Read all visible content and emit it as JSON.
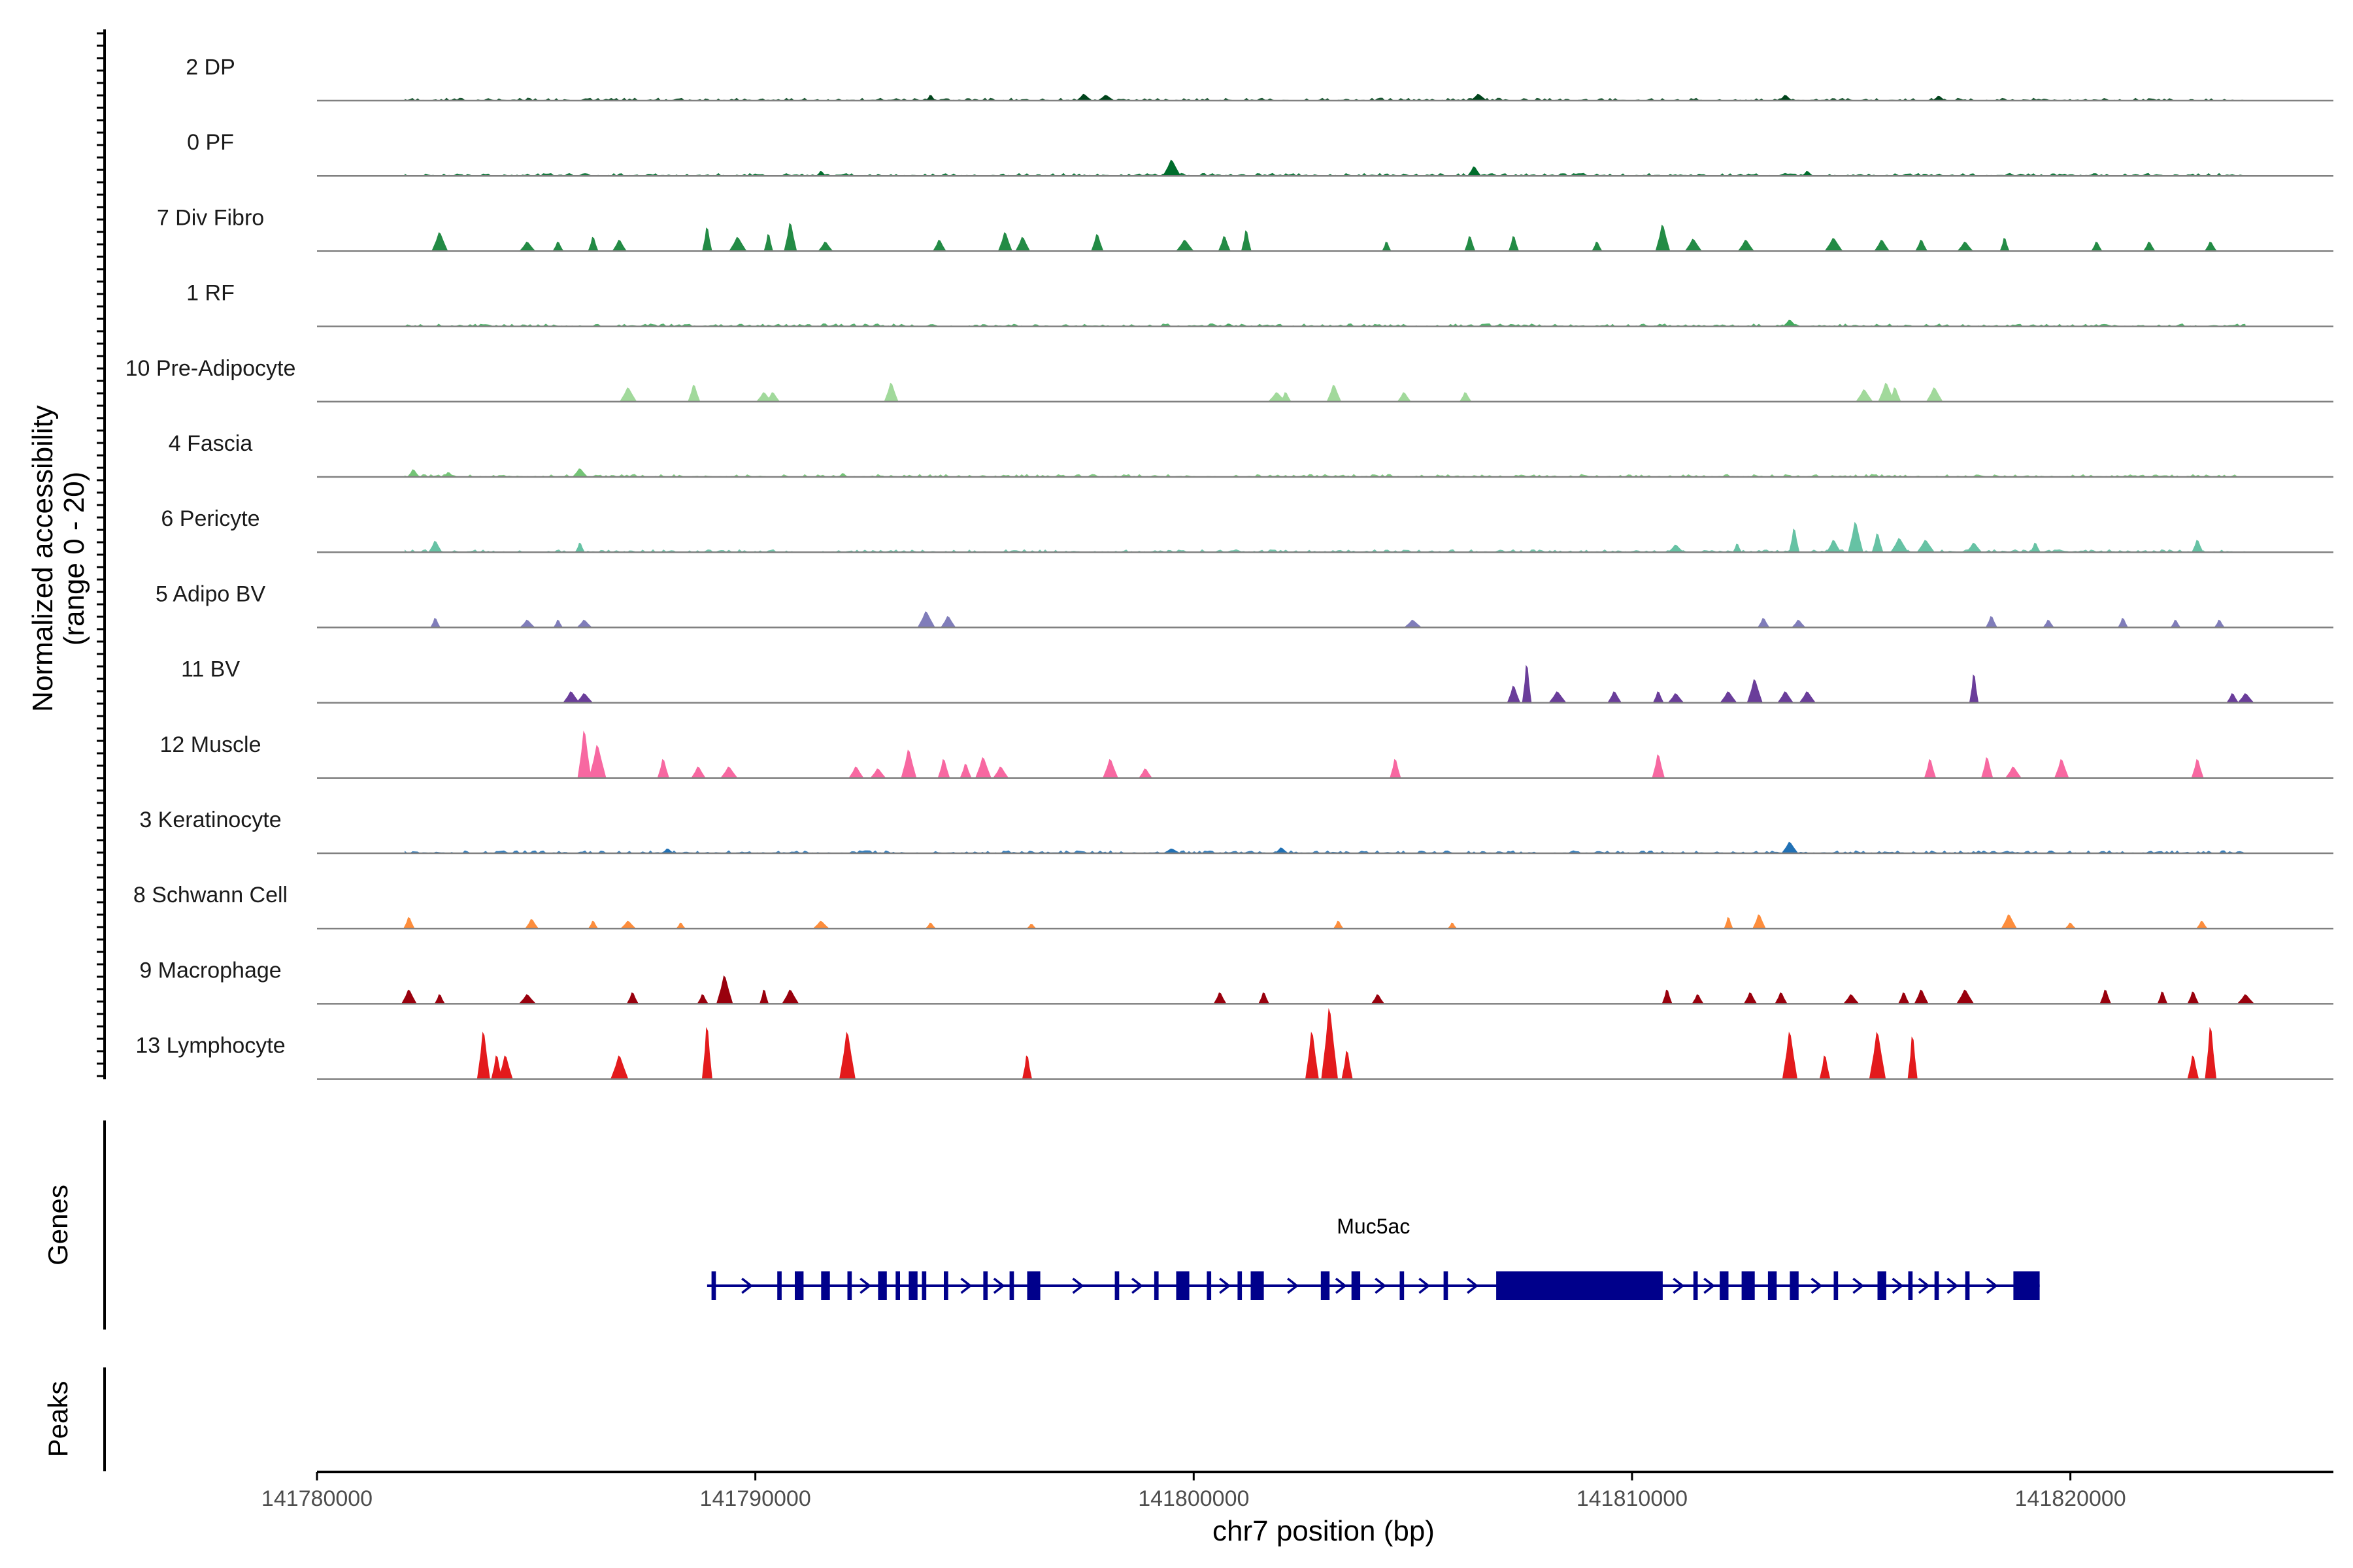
{
  "chart_data": {
    "type": "area",
    "title": "",
    "ylabel": "Normalized accessibility\n(range 0 - 20)",
    "ylabel_lines": [
      "Normalized accessibility",
      "(range 0 - 20)"
    ],
    "ylim": [
      0,
      20
    ],
    "xlabel": "chr7 position (bp)",
    "xlim": [
      141780000,
      141826000
    ],
    "x_ticks": [
      141780000,
      141790000,
      141800000,
      141810000,
      141820000
    ],
    "x_tick_labels": [
      "141780000",
      "141790000",
      "141800000",
      "141810000",
      "141820000"
    ],
    "panel_labels": {
      "genes": "Genes",
      "peaks": "Peaks"
    },
    "track_data_range": [
      141782000,
      141824000
    ],
    "tracks": [
      {
        "name": "2 DP",
        "color": "#00441b",
        "pattern": "broad",
        "peaks": [
          {
            "x": 141794000,
            "y": 0.6
          },
          {
            "x": 141797500,
            "y": 0.7
          },
          {
            "x": 141798000,
            "y": 0.6
          },
          {
            "x": 141806500,
            "y": 0.7
          },
          {
            "x": 141813500,
            "y": 0.6
          },
          {
            "x": 141817000,
            "y": 0.5
          }
        ]
      },
      {
        "name": "0 PF",
        "color": "#006d2c",
        "pattern": "broad",
        "peaks": [
          {
            "x": 141799500,
            "y": 1.7
          },
          {
            "x": 141806400,
            "y": 1.0
          },
          {
            "x": 141791500,
            "y": 0.5
          },
          {
            "x": 141814000,
            "y": 0.5
          }
        ]
      },
      {
        "name": "7 Div Fibro",
        "color": "#238b45",
        "pattern": "sparse",
        "peaks": [
          {
            "x": 141782800,
            "y": 2.0
          },
          {
            "x": 141784800,
            "y": 1.0
          },
          {
            "x": 141785500,
            "y": 1.0
          },
          {
            "x": 141786300,
            "y": 1.5
          },
          {
            "x": 141786900,
            "y": 1.2
          },
          {
            "x": 141788900,
            "y": 2.5
          },
          {
            "x": 141789600,
            "y": 1.5
          },
          {
            "x": 141790300,
            "y": 1.8
          },
          {
            "x": 141790800,
            "y": 3.0
          },
          {
            "x": 141791600,
            "y": 1.0
          },
          {
            "x": 141794200,
            "y": 1.2
          },
          {
            "x": 141795700,
            "y": 2.0
          },
          {
            "x": 141796100,
            "y": 1.5
          },
          {
            "x": 141797800,
            "y": 1.8
          },
          {
            "x": 141799800,
            "y": 1.2
          },
          {
            "x": 141800700,
            "y": 1.6
          },
          {
            "x": 141801200,
            "y": 2.2
          },
          {
            "x": 141804400,
            "y": 1.0
          },
          {
            "x": 141806300,
            "y": 1.6
          },
          {
            "x": 141807300,
            "y": 1.6
          },
          {
            "x": 141809200,
            "y": 1.0
          },
          {
            "x": 141810700,
            "y": 2.8
          },
          {
            "x": 141811400,
            "y": 1.3
          },
          {
            "x": 141812600,
            "y": 1.2
          },
          {
            "x": 141814600,
            "y": 1.4
          },
          {
            "x": 141815700,
            "y": 1.2
          },
          {
            "x": 141816600,
            "y": 1.2
          },
          {
            "x": 141817600,
            "y": 1.0
          },
          {
            "x": 141818500,
            "y": 1.4
          },
          {
            "x": 141820600,
            "y": 1.0
          },
          {
            "x": 141821800,
            "y": 1.0
          },
          {
            "x": 141823200,
            "y": 1.0
          }
        ]
      },
      {
        "name": "1 RF",
        "color": "#41ab5d",
        "pattern": "broad",
        "peaks": [
          {
            "x": 141813600,
            "y": 0.7
          },
          {
            "x": 141800800,
            "y": 0.3
          }
        ]
      },
      {
        "name": "10 Pre-Adipocyte",
        "color": "#a1d99b",
        "pattern": "sparse",
        "peaks": [
          {
            "x": 141787100,
            "y": 1.5
          },
          {
            "x": 141788600,
            "y": 1.8
          },
          {
            "x": 141790200,
            "y": 1.0
          },
          {
            "x": 141790400,
            "y": 1.0
          },
          {
            "x": 141793100,
            "y": 2.0
          },
          {
            "x": 141801900,
            "y": 1.0
          },
          {
            "x": 141802100,
            "y": 1.0
          },
          {
            "x": 141803200,
            "y": 1.8
          },
          {
            "x": 141804800,
            "y": 1.0
          },
          {
            "x": 141806200,
            "y": 1.0
          },
          {
            "x": 141815300,
            "y": 1.3
          },
          {
            "x": 141815800,
            "y": 2.0
          },
          {
            "x": 141816000,
            "y": 1.5
          },
          {
            "x": 141816900,
            "y": 1.5
          }
        ]
      },
      {
        "name": "4 Fascia",
        "color": "#74c476",
        "pattern": "broad",
        "peaks": [
          {
            "x": 141782200,
            "y": 0.8
          },
          {
            "x": 141783000,
            "y": 0.5
          },
          {
            "x": 141786000,
            "y": 0.9
          },
          {
            "x": 141792000,
            "y": 0.4
          }
        ]
      },
      {
        "name": "6 Pericyte",
        "color": "#66c2a4",
        "pattern": "broad",
        "peaks": [
          {
            "x": 141782700,
            "y": 1.2
          },
          {
            "x": 141786000,
            "y": 1.0
          },
          {
            "x": 141811000,
            "y": 0.8
          },
          {
            "x": 141812400,
            "y": 0.9
          },
          {
            "x": 141813700,
            "y": 2.5
          },
          {
            "x": 141814600,
            "y": 1.3
          },
          {
            "x": 141815100,
            "y": 3.2
          },
          {
            "x": 141815600,
            "y": 2.0
          },
          {
            "x": 141816100,
            "y": 1.5
          },
          {
            "x": 141816700,
            "y": 1.3
          },
          {
            "x": 141817800,
            "y": 1.0
          },
          {
            "x": 141819200,
            "y": 1.0
          },
          {
            "x": 141822900,
            "y": 1.3
          }
        ]
      },
      {
        "name": "5 Adipo BV",
        "color": "#807dba",
        "pattern": "sparse",
        "peaks": [
          {
            "x": 141782700,
            "y": 1.0
          },
          {
            "x": 141784800,
            "y": 0.8
          },
          {
            "x": 141785500,
            "y": 0.8
          },
          {
            "x": 141786100,
            "y": 0.8
          },
          {
            "x": 141793900,
            "y": 1.7
          },
          {
            "x": 141794400,
            "y": 1.2
          },
          {
            "x": 141805000,
            "y": 0.8
          },
          {
            "x": 141813000,
            "y": 1.0
          },
          {
            "x": 141813800,
            "y": 0.8
          },
          {
            "x": 141818200,
            "y": 1.2
          },
          {
            "x": 141819500,
            "y": 0.8
          },
          {
            "x": 141821200,
            "y": 1.0
          },
          {
            "x": 141822400,
            "y": 0.8
          },
          {
            "x": 141823400,
            "y": 0.8
          }
        ]
      },
      {
        "name": "11 BV",
        "color": "#6a3d9a",
        "pattern": "sparse",
        "peaks": [
          {
            "x": 141785800,
            "y": 1.2
          },
          {
            "x": 141786100,
            "y": 1.0
          },
          {
            "x": 141807300,
            "y": 1.8
          },
          {
            "x": 141807600,
            "y": 4.0
          },
          {
            "x": 141808300,
            "y": 1.2
          },
          {
            "x": 141809600,
            "y": 1.2
          },
          {
            "x": 141810600,
            "y": 1.2
          },
          {
            "x": 141811000,
            "y": 1.0
          },
          {
            "x": 141812200,
            "y": 1.2
          },
          {
            "x": 141812800,
            "y": 2.5
          },
          {
            "x": 141813500,
            "y": 1.2
          },
          {
            "x": 141814000,
            "y": 1.2
          },
          {
            "x": 141817800,
            "y": 3.0
          },
          {
            "x": 141823700,
            "y": 1.0
          },
          {
            "x": 141824000,
            "y": 1.0
          }
        ]
      },
      {
        "name": "12 Muscle",
        "color": "#f768a1",
        "pattern": "sparse",
        "peaks": [
          {
            "x": 141786100,
            "y": 5.0
          },
          {
            "x": 141786400,
            "y": 3.5
          },
          {
            "x": 141787900,
            "y": 2.0
          },
          {
            "x": 141788700,
            "y": 1.2
          },
          {
            "x": 141789400,
            "y": 1.2
          },
          {
            "x": 141792300,
            "y": 1.2
          },
          {
            "x": 141792800,
            "y": 1.0
          },
          {
            "x": 141793500,
            "y": 3.0
          },
          {
            "x": 141794300,
            "y": 2.0
          },
          {
            "x": 141794800,
            "y": 1.5
          },
          {
            "x": 141795200,
            "y": 2.2
          },
          {
            "x": 141795600,
            "y": 1.2
          },
          {
            "x": 141798100,
            "y": 2.0
          },
          {
            "x": 141798900,
            "y": 1.0
          },
          {
            "x": 141804600,
            "y": 2.0
          },
          {
            "x": 141810600,
            "y": 2.5
          },
          {
            "x": 141816800,
            "y": 2.0
          },
          {
            "x": 141818100,
            "y": 2.2
          },
          {
            "x": 141818700,
            "y": 1.2
          },
          {
            "x": 141819800,
            "y": 2.0
          },
          {
            "x": 141822900,
            "y": 2.0
          }
        ]
      },
      {
        "name": "3 Keratinocyte",
        "color": "#2171b5",
        "pattern": "broad",
        "peaks": [
          {
            "x": 141813600,
            "y": 1.2
          },
          {
            "x": 141788000,
            "y": 0.5
          },
          {
            "x": 141799500,
            "y": 0.5
          },
          {
            "x": 141802000,
            "y": 0.6
          }
        ]
      },
      {
        "name": "8 Schwann Cell",
        "color": "#fd8d3c",
        "pattern": "sparse",
        "peaks": [
          {
            "x": 141782100,
            "y": 1.2
          },
          {
            "x": 141784900,
            "y": 1.0
          },
          {
            "x": 141786300,
            "y": 0.8
          },
          {
            "x": 141787100,
            "y": 0.8
          },
          {
            "x": 141788300,
            "y": 0.6
          },
          {
            "x": 141791500,
            "y": 0.8
          },
          {
            "x": 141794000,
            "y": 0.6
          },
          {
            "x": 141796300,
            "y": 0.5
          },
          {
            "x": 141803300,
            "y": 0.8
          },
          {
            "x": 141805900,
            "y": 0.6
          },
          {
            "x": 141812200,
            "y": 1.2
          },
          {
            "x": 141812900,
            "y": 1.5
          },
          {
            "x": 141818600,
            "y": 1.5
          },
          {
            "x": 141820000,
            "y": 0.6
          },
          {
            "x": 141823000,
            "y": 0.8
          }
        ]
      },
      {
        "name": "9 Macrophage",
        "color": "#99000d",
        "pattern": "sparse",
        "peaks": [
          {
            "x": 141782100,
            "y": 1.5
          },
          {
            "x": 141782800,
            "y": 1.0
          },
          {
            "x": 141784800,
            "y": 1.0
          },
          {
            "x": 141787200,
            "y": 1.2
          },
          {
            "x": 141788800,
            "y": 1.0
          },
          {
            "x": 141789300,
            "y": 3.0
          },
          {
            "x": 141790200,
            "y": 1.5
          },
          {
            "x": 141790800,
            "y": 1.5
          },
          {
            "x": 141800600,
            "y": 1.2
          },
          {
            "x": 141801600,
            "y": 1.2
          },
          {
            "x": 141804200,
            "y": 1.0
          },
          {
            "x": 141810800,
            "y": 1.5
          },
          {
            "x": 141811500,
            "y": 1.0
          },
          {
            "x": 141812700,
            "y": 1.2
          },
          {
            "x": 141813400,
            "y": 1.2
          },
          {
            "x": 141815000,
            "y": 1.0
          },
          {
            "x": 141816200,
            "y": 1.2
          },
          {
            "x": 141816600,
            "y": 1.5
          },
          {
            "x": 141817600,
            "y": 1.5
          },
          {
            "x": 141820800,
            "y": 1.5
          },
          {
            "x": 141822100,
            "y": 1.3
          },
          {
            "x": 141822800,
            "y": 1.3
          },
          {
            "x": 141824000,
            "y": 1.0
          }
        ]
      },
      {
        "name": "13 Lymphocyte",
        "color": "#e31a1c",
        "pattern": "sparse",
        "peaks": [
          {
            "x": 141783800,
            "y": 5.0
          },
          {
            "x": 141784100,
            "y": 2.5
          },
          {
            "x": 141784300,
            "y": 2.5
          },
          {
            "x": 141786900,
            "y": 2.5
          },
          {
            "x": 141788900,
            "y": 5.5
          },
          {
            "x": 141792100,
            "y": 5.0
          },
          {
            "x": 141796200,
            "y": 2.5
          },
          {
            "x": 141802700,
            "y": 5.0
          },
          {
            "x": 141803100,
            "y": 7.5
          },
          {
            "x": 141803500,
            "y": 3.0
          },
          {
            "x": 141813600,
            "y": 5.0
          },
          {
            "x": 141814400,
            "y": 2.5
          },
          {
            "x": 141815600,
            "y": 5.0
          },
          {
            "x": 141816400,
            "y": 4.5
          },
          {
            "x": 141822800,
            "y": 2.5
          },
          {
            "x": 141823200,
            "y": 5.5
          }
        ]
      }
    ],
    "gene": {
      "name": "Muc5ac",
      "color": "#00008b",
      "strand": "+",
      "start": 141788900,
      "end": 141819300,
      "exons": [
        [
          141789000,
          141789100
        ],
        [
          141790500,
          141790600
        ],
        [
          141790900,
          141791100
        ],
        [
          141791500,
          141791700
        ],
        [
          141792100,
          141792200
        ],
        [
          141792800,
          141793000
        ],
        [
          141793200,
          141793300
        ],
        [
          141793500,
          141793700
        ],
        [
          141793800,
          141793900
        ],
        [
          141794300,
          141794400
        ],
        [
          141795200,
          141795300
        ],
        [
          141795800,
          141795900
        ],
        [
          141796200,
          141796500
        ],
        [
          141798200,
          141798300
        ],
        [
          141799100,
          141799200
        ],
        [
          141799600,
          141799900
        ],
        [
          141800300,
          141800400
        ],
        [
          141801000,
          141801100
        ],
        [
          141801300,
          141801600
        ],
        [
          141802900,
          141803100
        ],
        [
          141803600,
          141803800
        ],
        [
          141804700,
          141804800
        ],
        [
          141805700,
          141805800
        ],
        [
          141806900,
          141810700
        ],
        [
          141811400,
          141811500
        ],
        [
          141812000,
          141812200
        ],
        [
          141812500,
          141812800
        ],
        [
          141813100,
          141813300
        ],
        [
          141813600,
          141813800
        ],
        [
          141814600,
          141814700
        ],
        [
          141815600,
          141815800
        ],
        [
          141816300,
          141816400
        ],
        [
          141816900,
          141817000
        ],
        [
          141817600,
          141817700
        ],
        [
          141818700,
          141819300
        ]
      ]
    },
    "peaks_region": []
  },
  "colors": {
    "axis": "#000000",
    "baseline": "#808080",
    "text": "#1a1a1a",
    "background": "#ffffff"
  }
}
